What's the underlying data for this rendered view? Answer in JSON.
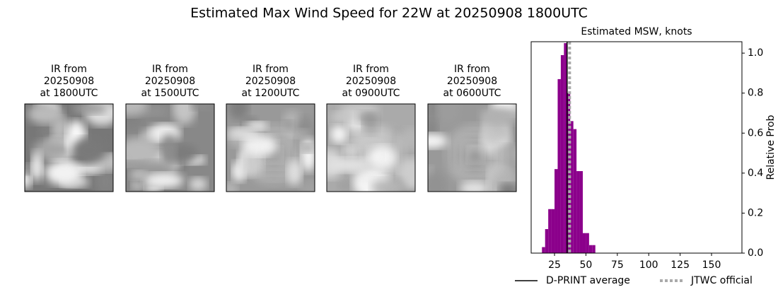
{
  "title": "Estimated Max Wind Speed for 22W at 20250908 1800UTC",
  "panels": [
    {
      "caption": [
        "IR from",
        "20250908",
        "at 1800UTC"
      ]
    },
    {
      "caption": [
        "IR from",
        "20250908",
        "at 1500UTC"
      ]
    },
    {
      "caption": [
        "IR from",
        "20250908",
        "at 1200UTC"
      ]
    },
    {
      "caption": [
        "IR from",
        "20250908",
        "at 0900UTC"
      ]
    },
    {
      "caption": [
        "IR from",
        "20250908",
        "at 0600UTC"
      ]
    }
  ],
  "chart_data": {
    "type": "histogram",
    "title": "Estimated MSW, knots",
    "ylabel": "Relative Prob",
    "bins": [
      15,
      17.5,
      20,
      22.5,
      25,
      27.5,
      30,
      32.5,
      35,
      37.5,
      40,
      42.5,
      45,
      47.5,
      50,
      52.5,
      55,
      57.5
    ],
    "counts": [
      0.03,
      0.12,
      0.22,
      0.22,
      0.42,
      0.87,
      0.99,
      1.05,
      0.8,
      0.66,
      0.62,
      0.41,
      0.41,
      0.1,
      0.1,
      0.04,
      0.04
    ],
    "color": "#8b008b",
    "xlim": [
      6.4,
      174.2
    ],
    "xticks": [
      25,
      50,
      75,
      100,
      125,
      150
    ],
    "ylim": [
      0,
      1.057
    ],
    "yticks": [
      {
        "value": 0,
        "label": "0.0"
      },
      0.2,
      0.4,
      0.6,
      0.8,
      {
        "value": 1,
        "label": "1.0"
      }
    ],
    "lines": [
      {
        "name": "D-PRINT average",
        "value": 35,
        "color": "#000000",
        "style": "solid"
      },
      {
        "name": "JTWC official",
        "value": 37,
        "color": "#aaaaaa",
        "style": "dotted"
      }
    ],
    "legend": "lower center"
  }
}
